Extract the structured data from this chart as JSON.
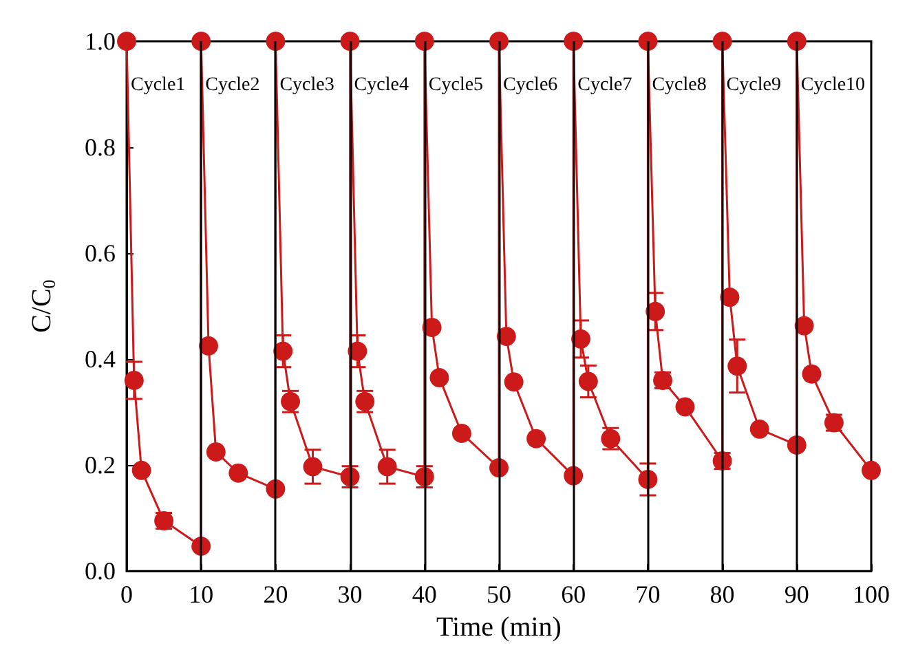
{
  "chart_data": {
    "type": "line",
    "xlabel": "Time (min)",
    "ylabel": "C/C$_{0}$",
    "x": [
      0,
      1,
      2,
      5,
      10,
      10,
      11,
      12,
      15,
      20,
      20,
      21,
      22,
      25,
      30,
      30,
      31,
      32,
      35,
      40,
      40,
      41,
      42,
      45,
      50,
      50,
      51,
      52,
      55,
      60,
      60,
      61,
      62,
      65,
      70,
      70,
      71,
      72,
      75,
      80,
      80,
      81,
      82,
      85,
      90,
      90,
      91,
      92,
      95,
      100
    ],
    "series": [
      {
        "color": "#cc1a1a",
        "values": [
          1.0,
          0.36,
          0.19,
          0.095,
          0.047,
          1.0,
          0.425,
          0.225,
          0.185,
          0.155,
          1.0,
          0.415,
          0.32,
          0.197,
          0.178,
          1.0,
          0.415,
          0.32,
          0.197,
          0.178,
          1.0,
          0.46,
          0.365,
          0.26,
          0.195,
          1.0,
          0.443,
          0.357,
          0.25,
          0.18,
          1.0,
          0.438,
          0.358,
          0.25,
          0.173,
          1.0,
          0.49,
          0.36,
          0.31,
          0.208,
          1.0,
          0.517,
          0.387,
          0.268,
          0.238,
          1.0,
          0.463,
          0.372,
          0.28,
          0.19
        ],
        "errors": [
          null,
          0.035,
          null,
          0.015,
          null,
          null,
          null,
          null,
          null,
          null,
          null,
          0.03,
          0.02,
          0.032,
          0.02,
          null,
          0.03,
          0.02,
          0.032,
          0.02,
          null,
          null,
          null,
          null,
          null,
          null,
          null,
          null,
          null,
          null,
          null,
          0.035,
          0.03,
          0.02,
          0.03,
          null,
          0.035,
          0.015,
          null,
          0.015,
          null,
          null,
          0.05,
          null,
          null,
          null,
          null,
          null,
          0.015,
          null
        ]
      }
    ],
    "xlim": [
      0,
      100
    ],
    "xticks": [
      0,
      10,
      20,
      30,
      40,
      50,
      60,
      70,
      80,
      90,
      100
    ],
    "ylim": [
      0,
      1.0
    ],
    "yticks": [
      {
        "value": 0,
        "label": "0.0"
      },
      {
        "value": 0.2,
        "label": "0.2"
      },
      {
        "value": 0.4,
        "label": "0.4"
      },
      {
        "value": 0.6,
        "label": "0.6"
      },
      {
        "value": 0.8,
        "label": "0.8"
      },
      {
        "value": 1.0,
        "label": "1.0"
      }
    ],
    "ref_lines": [
      {
        "axis": "x",
        "value": 10,
        "color": "#000000"
      },
      {
        "axis": "x",
        "value": 20,
        "color": "#000000"
      },
      {
        "axis": "x",
        "value": 30,
        "color": "#000000"
      },
      {
        "axis": "x",
        "value": 40,
        "color": "#000000"
      },
      {
        "axis": "x",
        "value": 50,
        "color": "#000000"
      },
      {
        "axis": "x",
        "value": 60,
        "color": "#000000"
      },
      {
        "axis": "x",
        "value": 70,
        "color": "#000000"
      },
      {
        "axis": "x",
        "value": 80,
        "color": "#000000"
      },
      {
        "axis": "x",
        "value": 90,
        "color": "#000000"
      }
    ],
    "annotations": [
      "Cycle1",
      "Cycle2",
      "Cycle3",
      "Cycle4",
      "Cycle5",
      "Cycle6",
      "Cycle7",
      "Cycle8",
      "Cycle9",
      "Cycle10"
    ],
    "grid": false,
    "marker": "circle",
    "line_style": "solid"
  }
}
